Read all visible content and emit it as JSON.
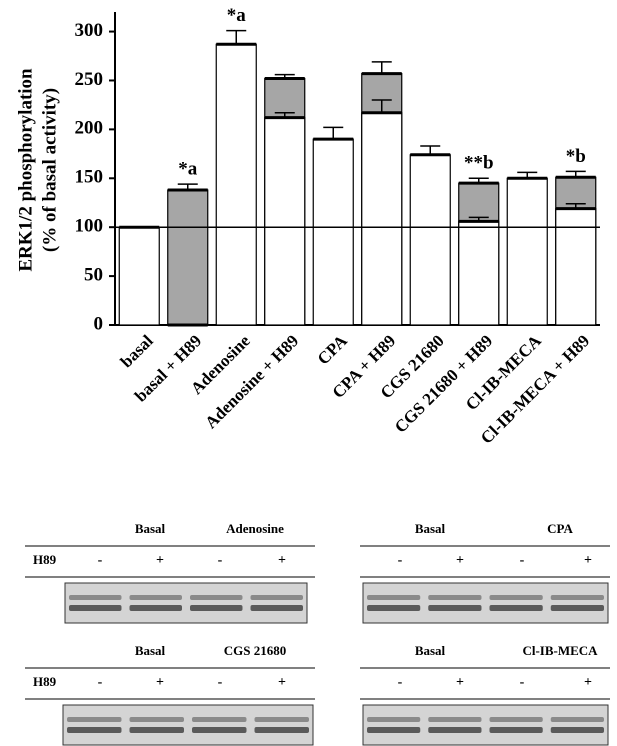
{
  "chart_data": {
    "type": "bar",
    "y_label": [
      "ERK1/2 phosphorylation",
      "(% of basal activity)"
    ],
    "categories": [
      "basal",
      "basal + H89",
      "Adenosine",
      "Adenosine + H89",
      "CPA",
      "CPA + H89",
      "CGS 21680",
      "CGS 21680 + H89",
      "Cl-IB-MECA",
      "Cl-IB-MECA + H89"
    ],
    "series": [
      {
        "color": "#a6a6a6",
        "values": [
          null,
          138,
          null,
          252,
          null,
          257,
          null,
          145,
          null,
          151
        ],
        "errors": [
          null,
          6,
          null,
          4,
          null,
          12,
          null,
          5,
          null,
          6
        ]
      },
      {
        "color": "#ffffff",
        "values": [
          100,
          0,
          287,
          212,
          190,
          217,
          174,
          106,
          150,
          119
        ],
        "errors": [
          null,
          null,
          14,
          5,
          12,
          13,
          9,
          4,
          6,
          5
        ]
      }
    ],
    "annotations": [
      null,
      "*a",
      "*a",
      null,
      null,
      null,
      null,
      "**b",
      null,
      "*b"
    ],
    "reference_line": 100,
    "ylim": [
      0,
      320
    ],
    "yticks": [
      0,
      50,
      100,
      150,
      200,
      250,
      300
    ]
  },
  "blots": [
    {
      "headers": [
        "Basal",
        "Adenosine"
      ],
      "row_label": "H89",
      "signs": [
        "-",
        "+",
        "-",
        "+"
      ]
    },
    {
      "headers": [
        "Basal",
        "CPA"
      ],
      "signs": [
        "-",
        "+",
        "-",
        "+"
      ]
    },
    {
      "headers": [
        "Basal",
        "CGS 21680"
      ],
      "row_label": "H89",
      "signs": [
        "-",
        "+",
        "-",
        "+"
      ]
    },
    {
      "headers": [
        "Basal",
        "Cl-IB-MECA"
      ],
      "signs": [
        "-",
        "+",
        "-",
        "+"
      ]
    }
  ]
}
